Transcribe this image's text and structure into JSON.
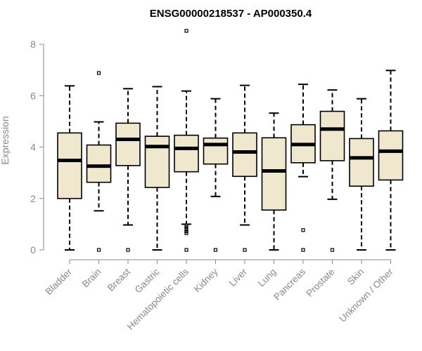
{
  "chart_data": {
    "type": "boxplot",
    "title": "ENSG00000218537 - AP000350.4",
    "xlabel": "",
    "ylabel": "Expression",
    "ylim": [
      0,
      8
    ],
    "yticks": [
      0,
      2,
      4,
      6,
      8
    ],
    "grid": false,
    "categories": [
      "Bladder",
      "Brain",
      "Breast",
      "Gastric",
      "Hematopoietic cells",
      "Kidney",
      "Liver",
      "Lung",
      "Pancreas",
      "Prostate",
      "Skin",
      "Unknown / Other"
    ],
    "boxes": [
      {
        "min": 0.0,
        "q1": 2.0,
        "median": 3.48,
        "q3": 4.55,
        "max": 6.38,
        "outliers": []
      },
      {
        "min": 1.52,
        "q1": 2.63,
        "median": 3.26,
        "q3": 4.08,
        "max": 4.98,
        "outliers": [
          0.0,
          6.88
        ]
      },
      {
        "min": 0.97,
        "q1": 3.28,
        "median": 4.3,
        "q3": 4.93,
        "max": 6.27,
        "outliers": [
          0.0
        ]
      },
      {
        "min": 0.0,
        "q1": 2.43,
        "median": 4.02,
        "q3": 4.42,
        "max": 6.35,
        "outliers": []
      },
      {
        "min": 1.0,
        "q1": 3.04,
        "median": 3.95,
        "q3": 4.46,
        "max": 6.18,
        "outliers": [
          0.0,
          0.65,
          0.72,
          0.8,
          0.88,
          0.95,
          8.52
        ]
      },
      {
        "min": 2.08,
        "q1": 3.34,
        "median": 4.1,
        "q3": 4.35,
        "max": 5.88,
        "outliers": [
          0.0
        ]
      },
      {
        "min": 0.97,
        "q1": 2.86,
        "median": 3.81,
        "q3": 4.55,
        "max": 6.4,
        "outliers": [
          0.0
        ]
      },
      {
        "min": 0.0,
        "q1": 1.55,
        "median": 3.07,
        "q3": 4.36,
        "max": 5.32,
        "outliers": []
      },
      {
        "min": 2.85,
        "q1": 3.39,
        "median": 4.1,
        "q3": 4.87,
        "max": 6.44,
        "outliers": [
          0.0,
          0.77
        ]
      },
      {
        "min": 1.97,
        "q1": 3.47,
        "median": 4.7,
        "q3": 5.39,
        "max": 6.22,
        "outliers": [
          0.0
        ]
      },
      {
        "min": 0.0,
        "q1": 2.48,
        "median": 3.58,
        "q3": 4.33,
        "max": 5.88,
        "outliers": []
      },
      {
        "min": 0.0,
        "q1": 2.72,
        "median": 3.84,
        "q3": 4.63,
        "max": 6.98,
        "outliers": []
      }
    ],
    "colors": {
      "box_fill": "#efe8cf",
      "stroke": "#000000",
      "axis": "#888888"
    }
  }
}
